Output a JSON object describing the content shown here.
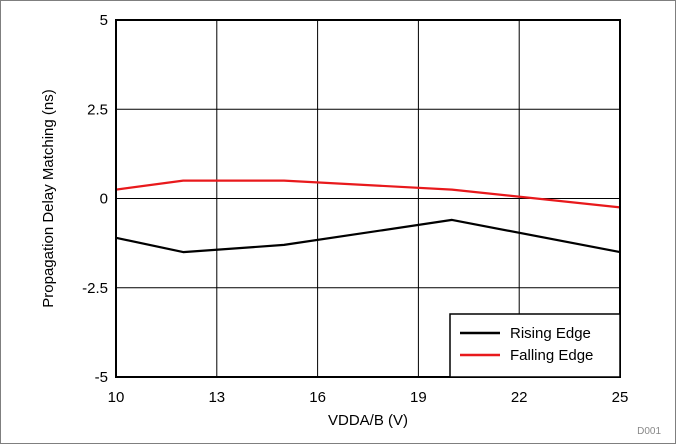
{
  "chart_data": {
    "type": "line",
    "xlabel": "VDDA/B (V)",
    "ylabel": "Propagation Delay Matching (ns)",
    "xlim": [
      10,
      25
    ],
    "ylim": [
      -5,
      5
    ],
    "x_ticks": [
      10,
      13,
      16,
      19,
      22,
      25
    ],
    "x_tick_labels": [
      "10",
      "13",
      "16",
      "19",
      "22",
      "25"
    ],
    "y_ticks": [
      -5,
      -2.5,
      0,
      2.5,
      5
    ],
    "y_tick_labels": [
      "-5",
      "-2.5",
      "0",
      "2.5",
      "5"
    ],
    "grid": true,
    "legend_position": "bottom-right",
    "series": [
      {
        "name": "Rising Edge",
        "color": "#000000",
        "x": [
          10,
          12,
          15,
          20,
          25
        ],
        "y": [
          -1.1,
          -1.5,
          -1.3,
          -0.6,
          -1.5
        ]
      },
      {
        "name": "Falling Edge",
        "color": "#e8191c",
        "x": [
          10,
          12,
          15,
          20,
          25
        ],
        "y": [
          0.25,
          0.5,
          0.5,
          0.25,
          -0.25
        ]
      }
    ],
    "figure_id": "D001"
  }
}
